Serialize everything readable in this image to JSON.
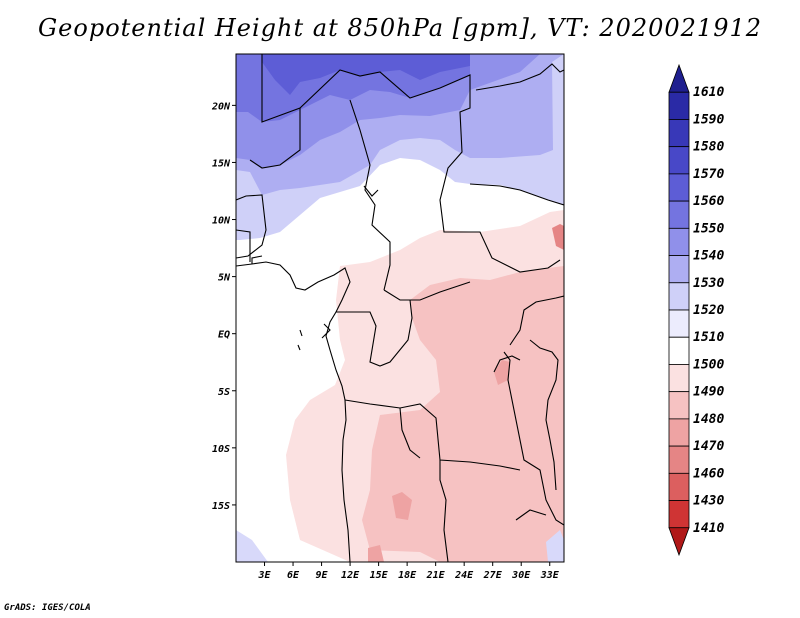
{
  "title": "Geopotential Height at 850hPa [gpm], VT: 2020021912",
  "credit": "GrADS: IGES/COLA",
  "map": {
    "variable": "Geopotential Height",
    "level": "850hPa",
    "units": "gpm",
    "valid_time": "2020021912",
    "lon_range": [
      0,
      34.5
    ],
    "lat_range": [
      -20,
      24.5
    ],
    "x_ticks": [
      "3E",
      "6E",
      "9E",
      "12E",
      "15E",
      "18E",
      "21E",
      "24E",
      "27E",
      "30E",
      "33E"
    ],
    "y_ticks": [
      "20N",
      "15N",
      "10N",
      "5N",
      "EQ",
      "5S",
      "10S",
      "15S"
    ]
  },
  "colorbar": {
    "levels": [
      "1610",
      "1590",
      "1580",
      "1570",
      "1560",
      "1550",
      "1540",
      "1530",
      "1520",
      "1510",
      "1500",
      "1490",
      "1480",
      "1470",
      "1460",
      "1430",
      "1410"
    ],
    "colors": [
      "#1f1f8f",
      "#2a2aa6",
      "#3838b8",
      "#4848c8",
      "#5d5dd6",
      "#7474e0",
      "#9090ea",
      "#aeaef2",
      "#cfd0f8",
      "#ececfd",
      "#ffffff",
      "#fbe1e1",
      "#f6c2c2",
      "#eea3a3",
      "#e58585",
      "#dc5f5f",
      "#cf3434",
      "#b01818"
    ]
  }
}
